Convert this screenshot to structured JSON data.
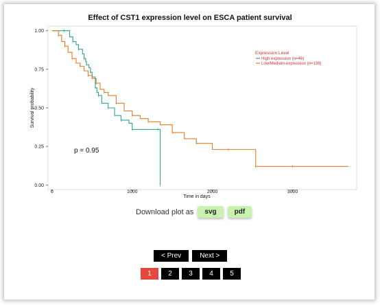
{
  "chart_data": {
    "type": "line",
    "title": "Effect of CST1 expression level on ESCA patient survival",
    "xlabel": "Time in days",
    "ylabel": "Survival probability",
    "xlim": [
      -50,
      3800
    ],
    "ylim": [
      -0.03,
      1.03
    ],
    "x_ticks": [
      0,
      1000,
      2000,
      3000
    ],
    "y_ticks": [
      0.0,
      0.25,
      0.5,
      0.75,
      1.0
    ],
    "y_tick_labels": [
      "0.00",
      "0.25",
      "0.50",
      "0.75",
      "1.00"
    ],
    "grid": false,
    "legend": {
      "title": "Expression Level",
      "position": "top-right",
      "entries": [
        "High expression (n=46)",
        "Low/Medium-expression (n=138)"
      ]
    },
    "annotation": "p = 0.95",
    "series": [
      {
        "name": "High expression (n=46)",
        "color": "#2fa38c",
        "x": [
          0,
          150,
          220,
          260,
          300,
          330,
          380,
          400,
          420,
          430,
          460,
          480,
          500,
          540,
          560,
          580,
          620,
          700,
          780,
          860,
          960,
          1000,
          1070,
          1320,
          1350,
          1350
        ],
        "y": [
          1.0,
          1.0,
          0.96,
          0.93,
          0.91,
          0.88,
          0.85,
          0.82,
          0.8,
          0.78,
          0.76,
          0.73,
          0.7,
          0.63,
          0.6,
          0.58,
          0.53,
          0.5,
          0.45,
          0.42,
          0.4,
          0.36,
          0.36,
          0.36,
          0.03,
          0.0
        ]
      },
      {
        "name": "Low/Medium-expression (n=138)",
        "color": "#e07b2a",
        "x": [
          0,
          80,
          120,
          160,
          200,
          250,
          300,
          350,
          400,
          450,
          500,
          550,
          600,
          650,
          700,
          800,
          900,
          1000,
          1100,
          1200,
          1350,
          1500,
          1650,
          1800,
          2000,
          2200,
          2400,
          2540,
          2600,
          3000,
          3700
        ],
        "y": [
          1.0,
          0.97,
          0.93,
          0.9,
          0.86,
          0.82,
          0.79,
          0.77,
          0.74,
          0.71,
          0.69,
          0.66,
          0.62,
          0.6,
          0.58,
          0.53,
          0.48,
          0.45,
          0.43,
          0.41,
          0.39,
          0.34,
          0.3,
          0.27,
          0.23,
          0.23,
          0.23,
          0.12,
          0.12,
          0.12,
          0.12
        ]
      }
    ]
  },
  "download": {
    "label": "Download plot as",
    "svg_label": "svg",
    "pdf_label": "pdf"
  },
  "pager": {
    "prev_label": "< Prev",
    "next_label": "Next >",
    "pages": [
      "1",
      "2",
      "3",
      "4",
      "5"
    ],
    "active_page": "1"
  }
}
